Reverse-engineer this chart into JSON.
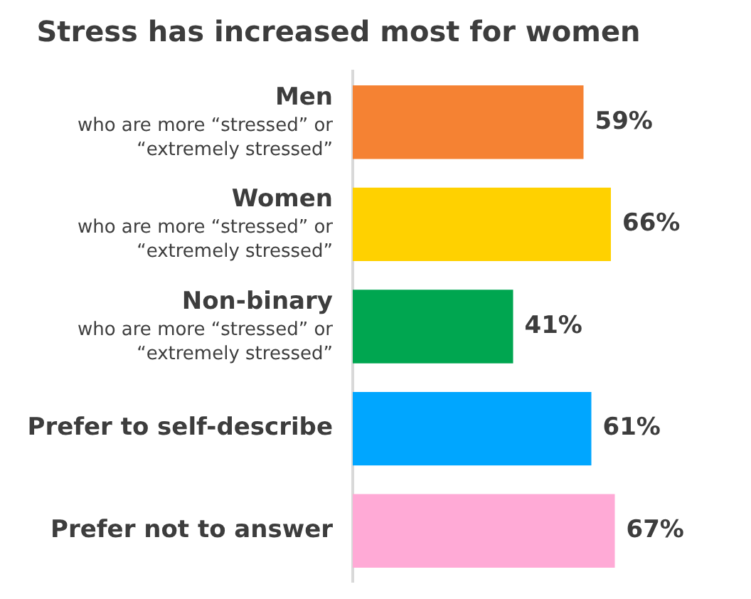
{
  "chart_data": {
    "type": "bar",
    "orientation": "horizontal",
    "title": "Stress has increased most for women",
    "categories": [
      "Men\nwho are more “stressed” or\n“extremely stressed”",
      "Women\nwho are more “stressed” or\n“extremely stressed”",
      "Non-binary\nwho are more “stressed” or\n“extremely stressed”",
      "Prefer to self-describe",
      "Prefer not to answer"
    ],
    "values": [
      59,
      66,
      41,
      61,
      67
    ],
    "colors": [
      "#f58233",
      "#ffd100",
      "#00a650",
      "#00a6ff",
      "#ffaad6"
    ],
    "value_labels": [
      "59%",
      "66%",
      "41%",
      "61%",
      "67%"
    ],
    "tick_labels": "y",
    "grid": false,
    "legend": false
  }
}
